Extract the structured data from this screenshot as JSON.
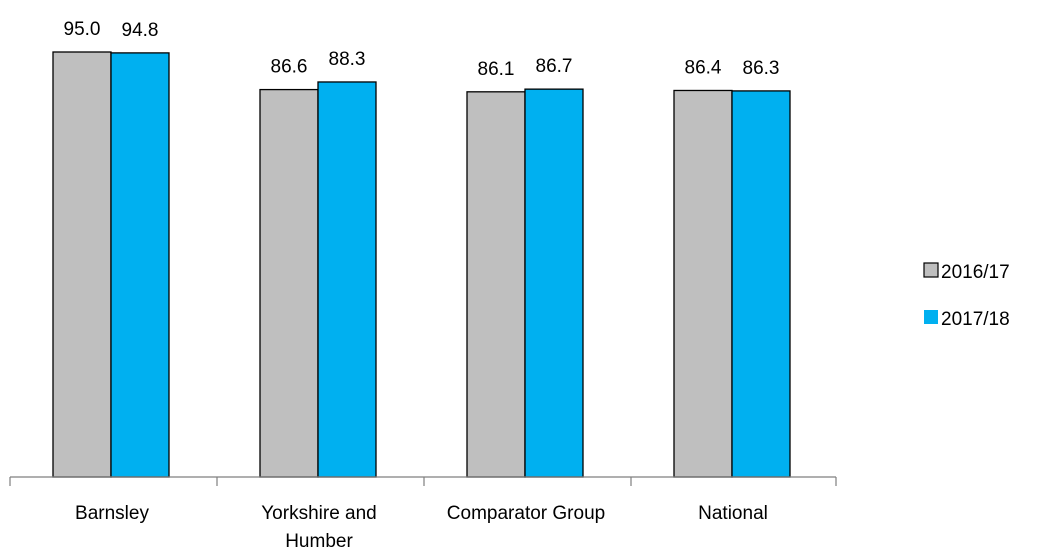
{
  "chart_data": {
    "type": "bar",
    "categories": [
      "Barnsley",
      "Yorkshire and Humber",
      "Comparator Group",
      "National"
    ],
    "category_lines": [
      [
        "Barnsley"
      ],
      [
        "Yorkshire and",
        "Humber"
      ],
      [
        "Comparator Group"
      ],
      [
        "National"
      ]
    ],
    "series": [
      {
        "name": "2016/17",
        "values": [
          95.0,
          86.6,
          86.1,
          86.4
        ],
        "labels": [
          "95.0",
          "86.6",
          "86.1",
          "86.4"
        ],
        "color": "#BFBFBF"
      },
      {
        "name": "2017/18",
        "values": [
          94.8,
          88.3,
          86.7,
          86.3
        ],
        "labels": [
          "94.8",
          "88.3",
          "86.7",
          "86.3"
        ],
        "color": "#00B0F0"
      }
    ],
    "legend_position": "right",
    "grid": false,
    "show_y_axis": false
  }
}
